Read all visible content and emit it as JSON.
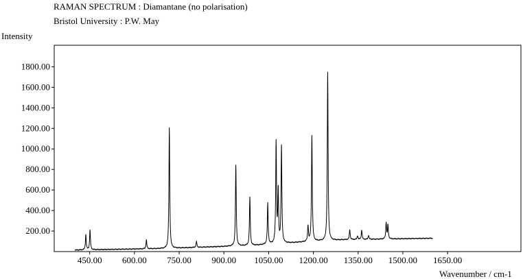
{
  "chart_data": {
    "type": "line",
    "title": "RAMAN SPECTRUM : Diamantane (no polarisation)",
    "subtitle": "Bristol University : P.W. May",
    "xlabel": "Wavenumber / cm-1",
    "ylabel": "Intensity",
    "xlim": [
      331,
      1896
    ],
    "ylim": [
      0,
      2010
    ],
    "xticks": [
      "450.00",
      "600.00",
      "750.00",
      "900.00",
      "1050.00",
      "1200.00",
      "1350.00",
      "1500.00",
      "1650.00"
    ],
    "yticks": [
      "200.00",
      "400.00",
      "600.00",
      "800.00",
      "1000.00",
      "1200.00",
      "1400.00",
      "1600.00",
      "1800.00"
    ],
    "grid": false,
    "series": [
      {
        "baseline": [
          [
            400,
            15
          ],
          [
            500,
            20
          ],
          [
            600,
            25
          ],
          [
            700,
            30
          ],
          [
            800,
            40
          ],
          [
            900,
            50
          ],
          [
            1000,
            60
          ],
          [
            1100,
            80
          ],
          [
            1200,
            100
          ],
          [
            1300,
            115
          ],
          [
            1400,
            120
          ],
          [
            1500,
            125
          ],
          [
            1600,
            130
          ]
        ],
        "peaks": [
          {
            "x": 437,
            "y": 165
          },
          {
            "x": 451,
            "y": 210
          },
          {
            "x": 640,
            "y": 115
          },
          {
            "x": 717,
            "y": 1210
          },
          {
            "x": 808,
            "y": 100
          },
          {
            "x": 940,
            "y": 840
          },
          {
            "x": 987,
            "y": 530
          },
          {
            "x": 1047,
            "y": 470
          },
          {
            "x": 1075,
            "y": 1065
          },
          {
            "x": 1082,
            "y": 580
          },
          {
            "x": 1093,
            "y": 1025
          },
          {
            "x": 1182,
            "y": 250
          },
          {
            "x": 1195,
            "y": 1130
          },
          {
            "x": 1248,
            "y": 1750
          },
          {
            "x": 1322,
            "y": 215
          },
          {
            "x": 1348,
            "y": 155
          },
          {
            "x": 1362,
            "y": 210
          },
          {
            "x": 1385,
            "y": 160
          },
          {
            "x": 1444,
            "y": 285
          },
          {
            "x": 1450,
            "y": 255
          }
        ]
      }
    ]
  }
}
